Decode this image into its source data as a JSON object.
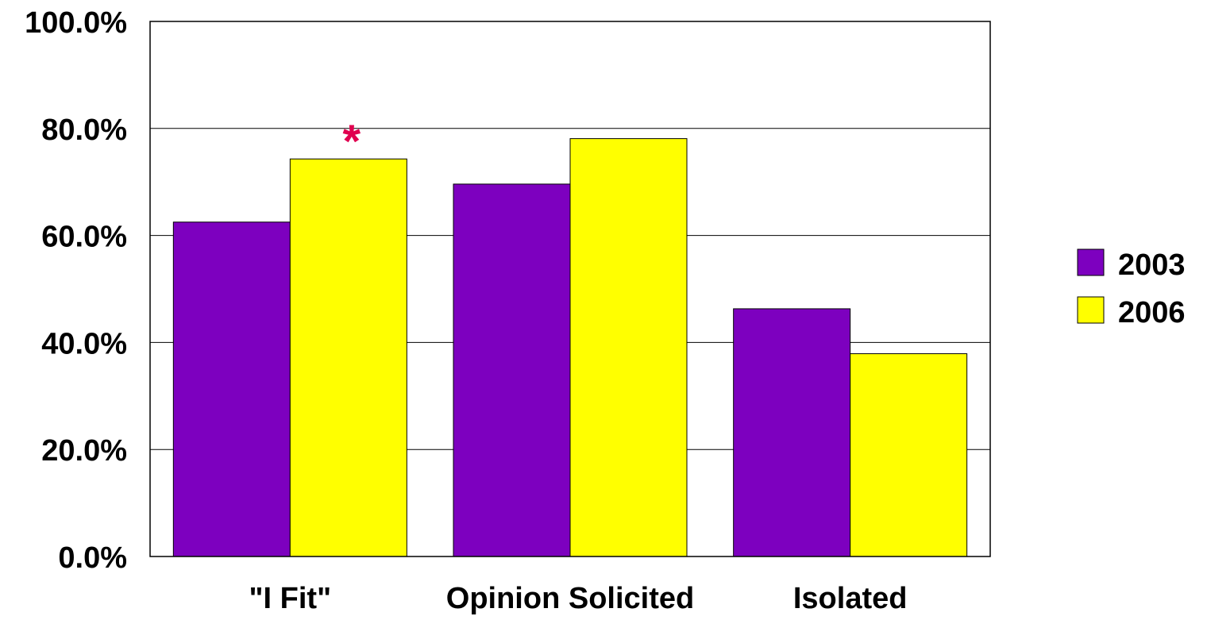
{
  "chart_data": {
    "type": "bar",
    "categories": [
      "\"I Fit\"",
      "Opinion Solicited",
      "Isolated"
    ],
    "series": [
      {
        "name": "2003",
        "values": [
          62.5,
          69.6,
          46.3
        ],
        "color": "#7d00bf"
      },
      {
        "name": "2006",
        "values": [
          74.3,
          78.1,
          37.9
        ],
        "color": "#ffff00"
      }
    ],
    "yticks": [
      "0.0%",
      "20.0%",
      "40.0%",
      "60.0%",
      "80.0%",
      "100.0%"
    ],
    "ytick_values": [
      0,
      20,
      40,
      60,
      80,
      100
    ],
    "ylim": [
      0,
      100
    ],
    "grid": true,
    "legend_position": "right",
    "annotations": [
      {
        "text": "*",
        "category_index": 0,
        "series_index": 1,
        "color": "#e0004f"
      }
    ]
  }
}
